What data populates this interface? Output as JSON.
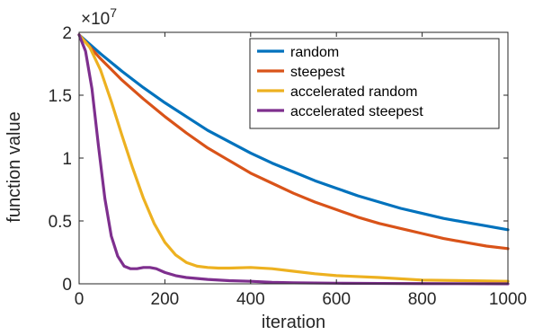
{
  "chart_data": {
    "type": "line",
    "xlabel": "iteration",
    "ylabel": "function value",
    "exponent_label": {
      "base": "×10",
      "power": "7"
    },
    "xlim": [
      0,
      1000
    ],
    "ylim": [
      0,
      2
    ],
    "xticks": [
      0,
      200,
      400,
      600,
      800,
      1000
    ],
    "yticks": [
      0,
      0.5,
      1,
      1.5,
      2
    ],
    "ytick_labels": [
      "0",
      "0.5",
      "1",
      "1.5",
      "2"
    ],
    "grid": false,
    "legend_position": "top-right",
    "series": [
      {
        "name": "random",
        "color": "#0072BD",
        "x": [
          0,
          50,
          100,
          150,
          200,
          250,
          300,
          350,
          400,
          450,
          500,
          550,
          600,
          650,
          700,
          750,
          800,
          850,
          900,
          950,
          1000
        ],
        "y": [
          1.98,
          1.83,
          1.69,
          1.56,
          1.44,
          1.33,
          1.22,
          1.13,
          1.04,
          0.96,
          0.89,
          0.82,
          0.76,
          0.7,
          0.65,
          0.6,
          0.56,
          0.52,
          0.49,
          0.46,
          0.43
        ]
      },
      {
        "name": "steepest",
        "color": "#D95319",
        "x": [
          0,
          50,
          100,
          150,
          200,
          250,
          300,
          350,
          400,
          450,
          500,
          550,
          600,
          650,
          700,
          750,
          800,
          850,
          900,
          950,
          1000
        ],
        "y": [
          1.98,
          1.79,
          1.62,
          1.47,
          1.33,
          1.2,
          1.08,
          0.98,
          0.88,
          0.8,
          0.72,
          0.65,
          0.59,
          0.53,
          0.48,
          0.44,
          0.4,
          0.36,
          0.33,
          0.3,
          0.28
        ]
      },
      {
        "name": "accelerated random",
        "color": "#EDB120",
        "x": [
          0,
          25,
          50,
          75,
          100,
          125,
          150,
          175,
          200,
          225,
          250,
          275,
          300,
          325,
          350,
          400,
          450,
          500,
          550,
          600,
          700,
          800,
          900,
          1000
        ],
        "y": [
          1.98,
          1.88,
          1.7,
          1.45,
          1.18,
          0.92,
          0.68,
          0.48,
          0.33,
          0.23,
          0.17,
          0.14,
          0.13,
          0.125,
          0.125,
          0.13,
          0.12,
          0.1,
          0.08,
          0.065,
          0.05,
          0.03,
          0.025,
          0.02
        ]
      },
      {
        "name": "accelerated steepest",
        "color": "#7E2F8E",
        "x": [
          0,
          15,
          30,
          45,
          60,
          75,
          90,
          105,
          120,
          135,
          150,
          165,
          180,
          200,
          225,
          250,
          300,
          350,
          400,
          450,
          500,
          600,
          700,
          800,
          1000
        ],
        "y": [
          1.98,
          1.85,
          1.55,
          1.1,
          0.68,
          0.38,
          0.22,
          0.14,
          0.12,
          0.12,
          0.13,
          0.13,
          0.12,
          0.09,
          0.065,
          0.05,
          0.035,
          0.025,
          0.02,
          0.012,
          0.008,
          0.005,
          0.003,
          0.002,
          0.0
        ]
      }
    ]
  }
}
